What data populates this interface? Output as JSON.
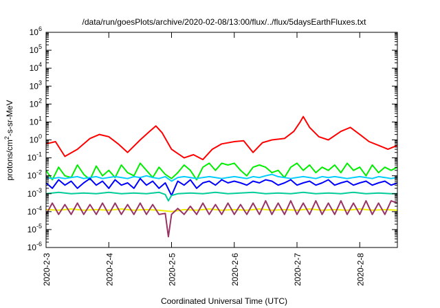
{
  "chart_data": {
    "type": "line",
    "title": "/data/run/goesPlots/archive/2020-02-08/13:00/flux/../flux/5daysEarthFluxes.txt",
    "xlabel": "Coordinated Universal Time (UTC)",
    "ylabel": "protons/cm2-s-sr-MeV",
    "yscale": "log",
    "ylim": [
      1e-06,
      1000000.0
    ],
    "xlim": [
      0,
      5.6
    ],
    "grid": false,
    "legend": "none",
    "x_ticks": [
      {
        "x": 0,
        "label": "2020-2-3"
      },
      {
        "x": 1,
        "label": "2020-2-4"
      },
      {
        "x": 2,
        "label": "2020-2-5"
      },
      {
        "x": 3,
        "label": "2020-2-6"
      },
      {
        "x": 4,
        "label": "2020-2-7"
      },
      {
        "x": 5,
        "label": "2020-2-8"
      }
    ],
    "y_ticks": [
      {
        "exp": 6
      },
      {
        "exp": 5
      },
      {
        "exp": 4
      },
      {
        "exp": 3
      },
      {
        "exp": 2
      },
      {
        "exp": 1
      },
      {
        "exp": 0
      },
      {
        "exp": -1
      },
      {
        "exp": -2
      },
      {
        "exp": -3
      },
      {
        "exp": -4
      },
      {
        "exp": -5
      },
      {
        "exp": -6
      }
    ],
    "series": [
      {
        "color": "#ff0000",
        "x": [
          0,
          0.15,
          0.3,
          0.5,
          0.7,
          0.85,
          1.0,
          1.15,
          1.3,
          1.5,
          1.65,
          1.75,
          1.85,
          2.0,
          2.2,
          2.35,
          2.5,
          2.65,
          2.8,
          3.0,
          3.15,
          3.3,
          3.45,
          3.6,
          3.8,
          3.95,
          4.05,
          4.1,
          4.2,
          4.35,
          4.5,
          4.7,
          4.85,
          5.0,
          5.15,
          5.3,
          5.45,
          5.6
        ],
        "y": [
          0.6,
          0.8,
          0.12,
          0.3,
          1.2,
          2.0,
          1.5,
          0.6,
          0.2,
          1.0,
          3.0,
          6.0,
          2.5,
          0.3,
          0.1,
          0.15,
          0.08,
          0.3,
          0.6,
          0.8,
          0.9,
          0.2,
          0.7,
          1.0,
          1.2,
          3.0,
          10,
          20,
          5.0,
          1.5,
          1.0,
          3.0,
          5.0,
          2.0,
          0.8,
          0.5,
          0.3,
          0.5
        ]
      },
      {
        "color": "#00ee00",
        "x": [
          0,
          0.1,
          0.2,
          0.3,
          0.4,
          0.5,
          0.6,
          0.7,
          0.8,
          0.9,
          1.0,
          1.1,
          1.2,
          1.3,
          1.4,
          1.5,
          1.6,
          1.7,
          1.8,
          1.9,
          2.0,
          2.1,
          2.2,
          2.3,
          2.4,
          2.5,
          2.6,
          2.7,
          2.8,
          2.9,
          3.0,
          3.1,
          3.2,
          3.3,
          3.4,
          3.5,
          3.6,
          3.7,
          3.8,
          3.9,
          4.0,
          4.1,
          4.2,
          4.3,
          4.4,
          4.5,
          4.6,
          4.7,
          4.8,
          4.9,
          5.0,
          5.1,
          5.2,
          5.3,
          5.4,
          5.5,
          5.6
        ],
        "y": [
          0.02,
          0.006,
          0.03,
          0.01,
          0.008,
          0.04,
          0.012,
          0.006,
          0.035,
          0.01,
          0.02,
          0.008,
          0.04,
          0.015,
          0.01,
          0.05,
          0.02,
          0.008,
          0.03,
          0.012,
          0.007,
          0.015,
          0.04,
          0.02,
          0.006,
          0.03,
          0.05,
          0.02,
          0.05,
          0.04,
          0.05,
          0.02,
          0.01,
          0.03,
          0.04,
          0.03,
          0.015,
          0.02,
          0.008,
          0.03,
          0.05,
          0.02,
          0.04,
          0.015,
          0.03,
          0.02,
          0.04,
          0.015,
          0.05,
          0.02,
          0.03,
          0.01,
          0.04,
          0.015,
          0.03,
          0.02,
          0.03
        ]
      },
      {
        "color": "#00ccff",
        "x": [
          0,
          0.1,
          0.2,
          0.3,
          0.4,
          0.5,
          0.6,
          0.7,
          0.8,
          0.9,
          1.0,
          1.1,
          1.2,
          1.3,
          1.4,
          1.5,
          1.6,
          1.7,
          1.8,
          1.9,
          2.0,
          2.1,
          2.2,
          2.3,
          2.4,
          2.5,
          2.6,
          2.7,
          2.8,
          2.9,
          3.0,
          3.1,
          3.2,
          3.3,
          3.4,
          3.5,
          3.6,
          3.7,
          3.8,
          3.9,
          4.0,
          4.1,
          4.2,
          4.3,
          4.4,
          4.5,
          4.6,
          4.7,
          4.8,
          4.9,
          5.0,
          5.1,
          5.2,
          5.3,
          5.4,
          5.5,
          5.6
        ],
        "y": [
          0.008,
          0.007,
          0.008,
          0.007,
          0.008,
          0.009,
          0.007,
          0.008,
          0.009,
          0.007,
          0.008,
          0.009,
          0.008,
          0.007,
          0.009,
          0.008,
          0.01,
          0.008,
          0.007,
          0.009,
          0.005,
          0.008,
          0.009,
          0.008,
          0.007,
          0.008,
          0.009,
          0.008,
          0.007,
          0.008,
          0.009,
          0.008,
          0.007,
          0.009,
          0.008,
          0.01,
          0.012,
          0.009,
          0.008,
          0.007,
          0.008,
          0.009,
          0.008,
          0.007,
          0.009,
          0.008,
          0.009,
          0.008,
          0.007,
          0.008,
          0.009,
          0.008,
          0.007,
          0.009,
          0.008,
          0.007,
          0.008
        ]
      },
      {
        "color": "#0000ff",
        "x": [
          0,
          0.1,
          0.2,
          0.3,
          0.4,
          0.5,
          0.6,
          0.7,
          0.8,
          0.9,
          1.0,
          1.1,
          1.2,
          1.3,
          1.4,
          1.5,
          1.6,
          1.7,
          1.8,
          1.9,
          2.0,
          2.1,
          2.2,
          2.3,
          2.4,
          2.5,
          2.6,
          2.7,
          2.8,
          2.9,
          3.0,
          3.1,
          3.2,
          3.3,
          3.4,
          3.5,
          3.6,
          3.7,
          3.8,
          3.9,
          4.0,
          4.1,
          4.2,
          4.3,
          4.4,
          4.5,
          4.6,
          4.7,
          4.8,
          4.9,
          5.0,
          5.1,
          5.2,
          5.3,
          5.4,
          5.5,
          5.6
        ],
        "y": [
          0.004,
          0.002,
          0.006,
          0.003,
          0.005,
          0.002,
          0.004,
          0.007,
          0.003,
          0.005,
          0.002,
          0.006,
          0.003,
          0.004,
          0.002,
          0.007,
          0.003,
          0.005,
          0.002,
          0.004,
          0.0008,
          0.005,
          0.003,
          0.006,
          0.002,
          0.004,
          0.005,
          0.003,
          0.006,
          0.004,
          0.005,
          0.004,
          0.003,
          0.005,
          0.004,
          0.006,
          0.005,
          0.003,
          0.004,
          0.006,
          0.003,
          0.004,
          0.005,
          0.003,
          0.004,
          0.006,
          0.003,
          0.004,
          0.005,
          0.003,
          0.004,
          0.005,
          0.003,
          0.004,
          0.005,
          0.003,
          0.004
        ]
      },
      {
        "color": "#00cc99",
        "x": [
          0,
          0.2,
          0.4,
          0.6,
          0.8,
          1.0,
          1.2,
          1.4,
          1.6,
          1.8,
          1.9,
          1.95,
          2.0,
          2.1,
          2.3,
          2.5,
          2.7,
          2.9,
          3.1,
          3.3,
          3.5,
          3.7,
          3.9,
          4.1,
          4.3,
          4.5,
          4.7,
          4.9,
          5.1,
          5.3,
          5.5,
          5.6
        ],
        "y": [
          0.001,
          0.0012,
          0.001,
          0.0011,
          0.001,
          0.0012,
          0.001,
          0.0011,
          0.001,
          0.0012,
          0.0009,
          0.0004,
          0.0008,
          0.001,
          0.0011,
          0.001,
          0.0012,
          0.001,
          0.0011,
          0.0012,
          0.001,
          0.0011,
          0.001,
          0.0012,
          0.001,
          0.0011,
          0.001,
          0.0012,
          0.001,
          0.0011,
          0.001,
          0.001
        ]
      },
      {
        "color": "#eeee00",
        "x": [
          0,
          0.2,
          0.4,
          0.6,
          0.8,
          1.0,
          1.2,
          1.4,
          1.6,
          1.8,
          2.0,
          2.2,
          2.4,
          2.6,
          2.8,
          3.0,
          3.2,
          3.4,
          3.6,
          3.8,
          4.0,
          4.2,
          4.4,
          4.6,
          4.8,
          5.0,
          5.2,
          5.4,
          5.6
        ],
        "y": [
          0.00013,
          0.00012,
          0.00014,
          0.00012,
          0.00013,
          0.00012,
          0.00014,
          0.00012,
          0.00013,
          0.00012,
          0.0001,
          0.00013,
          0.00012,
          0.00014,
          0.00012,
          0.00013,
          0.00012,
          0.00014,
          0.00012,
          0.00013,
          0.00012,
          0.00014,
          0.00012,
          0.00013,
          0.00012,
          0.00014,
          0.00012,
          0.00013,
          0.00012
        ]
      },
      {
        "color": "#993366",
        "x": [
          0,
          0.1,
          0.2,
          0.3,
          0.4,
          0.5,
          0.6,
          0.7,
          0.8,
          0.9,
          1.0,
          1.1,
          1.2,
          1.3,
          1.4,
          1.5,
          1.6,
          1.7,
          1.8,
          1.9,
          1.95,
          2.0,
          2.1,
          2.2,
          2.3,
          2.4,
          2.5,
          2.6,
          2.7,
          2.8,
          2.9,
          3.0,
          3.1,
          3.2,
          3.3,
          3.4,
          3.5,
          3.6,
          3.7,
          3.8,
          3.9,
          4.0,
          4.1,
          4.2,
          4.3,
          4.4,
          4.5,
          4.6,
          4.7,
          4.8,
          4.9,
          5.0,
          5.1,
          5.2,
          5.3,
          5.4,
          5.5,
          5.6
        ],
        "y": [
          7e-05,
          0.0003,
          7e-05,
          0.00025,
          7e-05,
          0.0003,
          7e-05,
          0.00025,
          7e-05,
          0.0003,
          7e-05,
          0.0003,
          7e-05,
          0.00025,
          7e-05,
          0.0003,
          7e-05,
          0.00025,
          7e-05,
          8e-05,
          4e-06,
          7e-05,
          0.00015,
          7e-05,
          0.0002,
          7e-05,
          0.0003,
          7e-05,
          0.00025,
          7e-05,
          0.0003,
          7e-05,
          0.00025,
          7e-05,
          0.0003,
          7e-05,
          0.0004,
          7e-05,
          0.0003,
          7e-05,
          0.0004,
          7e-05,
          0.0003,
          7e-05,
          0.0004,
          7e-05,
          0.0003,
          7e-05,
          0.0004,
          7e-05,
          0.0003,
          7e-05,
          0.0004,
          7e-05,
          0.0003,
          7e-05,
          0.0004,
          0.0003
        ]
      }
    ]
  }
}
